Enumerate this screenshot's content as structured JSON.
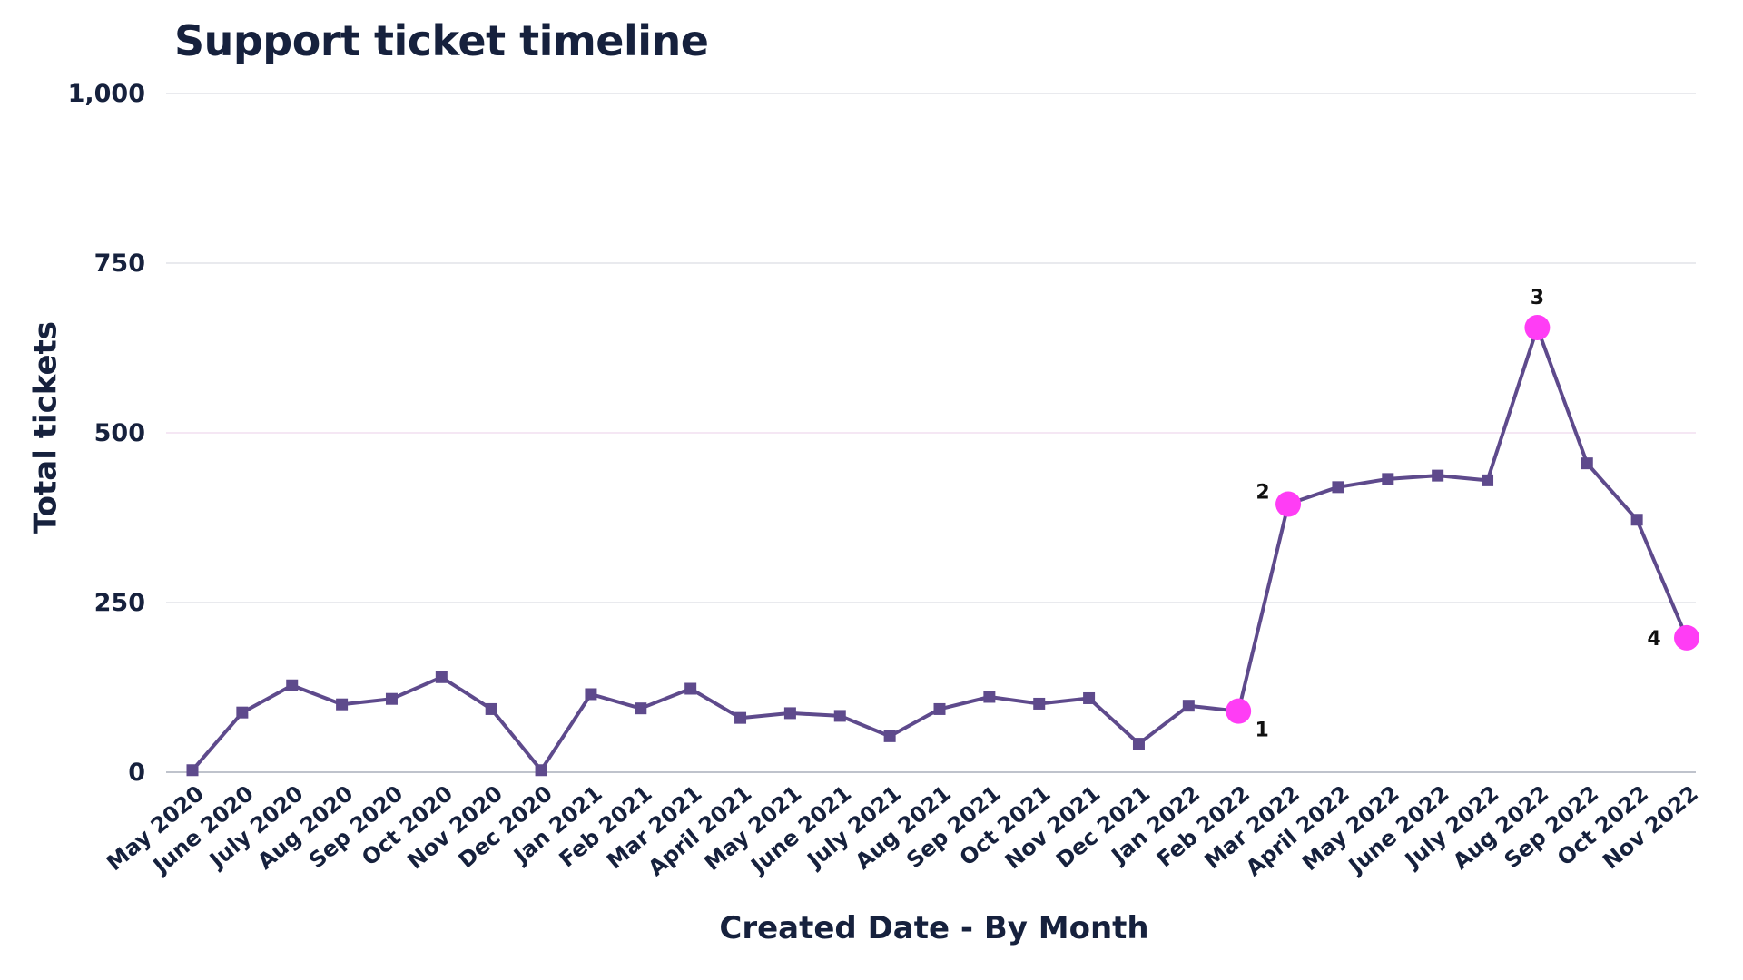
{
  "chart_data": {
    "type": "line",
    "title": "Support ticket timeline",
    "xlabel": "Created Date - By Month",
    "ylabel": "Total tickets",
    "ylim": [
      0,
      1000
    ],
    "yticks": [
      0,
      250,
      500,
      750,
      1000
    ],
    "ytick_labels": [
      "0",
      "250",
      "500",
      "750",
      "1,000"
    ],
    "grid": true,
    "categories": [
      "May 2020",
      "June 2020",
      "July 2020",
      "Aug 2020",
      "Sep 2020",
      "Oct 2020",
      "Nov 2020",
      "Dec 2020",
      "Jan 2021",
      "Feb 2021",
      "Mar 2021",
      "April 2021",
      "May 2021",
      "June 2021",
      "July 2021",
      "Aug 2021",
      "Sep 2021",
      "Oct 2021",
      "Nov 2021",
      "Dec 2021",
      "Jan 2022",
      "Feb 2022",
      "Mar 2022",
      "April 2022",
      "May 2022",
      "June 2022",
      "July 2022",
      "Aug 2022",
      "Sep 2022",
      "Oct 2022",
      "Nov 2022"
    ],
    "series": [
      {
        "values": [
          3,
          88,
          128,
          100,
          108,
          140,
          93,
          3,
          115,
          94,
          123,
          80,
          87,
          83,
          53,
          93,
          111,
          101,
          109,
          42,
          98,
          90,
          395,
          420,
          432,
          437,
          430,
          655,
          455,
          372,
          198
        ],
        "color": "#5e4a8c"
      }
    ],
    "annotations": [
      {
        "label": "1",
        "category": "Feb 2022",
        "value": 90,
        "color": "#ff3df5"
      },
      {
        "label": "2",
        "category": "Mar 2022",
        "value": 395,
        "color": "#ff3df5"
      },
      {
        "label": "3",
        "category": "Aug 2022",
        "value": 655,
        "color": "#ff3df5"
      },
      {
        "label": "4",
        "category": "Nov 2022",
        "value": 198,
        "color": "#ff3df5"
      }
    ]
  }
}
